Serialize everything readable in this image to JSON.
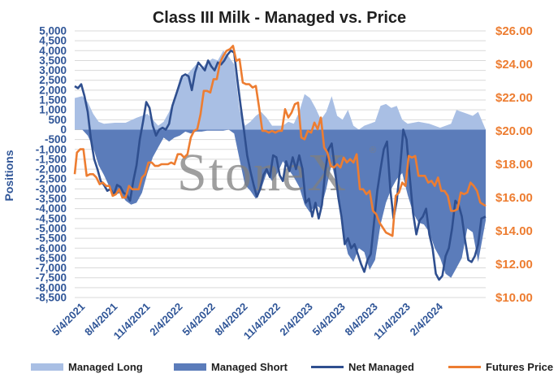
{
  "chart_data": {
    "type": "area",
    "title": "Class III Milk - Managed vs. Price",
    "ylabel": "Positions",
    "y_left_range": [
      -8500,
      5000
    ],
    "y_right_range": [
      10,
      26
    ],
    "y_left_ticks": [
      "5,000",
      "4,500",
      "4,000",
      "3,500",
      "3,000",
      "2,500",
      "2,000",
      "1,500",
      "1,000",
      "500",
      "0",
      "-500",
      "-1,000",
      "-1,500",
      "-2,000",
      "-2,500",
      "-3,000",
      "-3,500",
      "-4,000",
      "-4,500",
      "-5,000",
      "-5,500",
      "-6,000",
      "-6,500",
      "-7,000",
      "-7,500",
      "-8,000",
      "-8,500"
    ],
    "y_right_ticks": [
      "$26.00",
      "$24.00",
      "$22.00",
      "$20.00",
      "$18.00",
      "$16.00",
      "$14.00",
      "$12.00",
      "$10.00"
    ],
    "x_tick_labels": [
      "5/4/2021",
      "8/4/2021",
      "11/4/2021",
      "2/4/2022",
      "5/4/2022",
      "8/4/2022",
      "11/4/2022",
      "2/4/2023",
      "5/4/2023",
      "8/4/2023",
      "11/4/2023",
      "2/4/2024"
    ],
    "x_tick_months": [
      0,
      3,
      6,
      9,
      12,
      15,
      18,
      21,
      24,
      27,
      30,
      33
    ],
    "x_months_span": [
      -0.7,
      37.2
    ],
    "watermark": "StoneX",
    "grid": true,
    "legend_position": "bottom",
    "series": [
      {
        "name": "Managed Long",
        "color": "#a9bfe4",
        "x": [
          -0.7,
          0,
          0.5,
          1,
          1.5,
          2,
          3,
          4,
          5,
          6,
          6.5,
          7,
          7.5,
          8,
          8.5,
          9,
          9.5,
          10,
          10.5,
          11,
          11.5,
          12,
          12.5,
          13,
          13.5,
          14,
          14.5,
          15,
          15.5,
          16,
          16.5,
          17,
          17.5,
          18,
          18.5,
          19,
          19.5,
          20,
          20.5,
          21,
          21.5,
          22,
          22.5,
          23,
          23.5,
          24,
          24.5,
          25,
          25.5,
          26,
          26.5,
          27,
          27.5,
          28,
          28.5,
          29,
          29.5,
          30,
          31,
          32,
          33,
          34,
          34.5,
          35,
          35.5,
          36,
          36.5,
          37.2
        ],
        "values": [
          1600,
          1700,
          1400,
          800,
          400,
          300,
          350,
          350,
          600,
          800,
          500,
          200,
          400,
          900,
          1600,
          2600,
          2700,
          3000,
          3300,
          3100,
          3400,
          3600,
          3500,
          4000,
          3700,
          3300,
          1000,
          200,
          400,
          700,
          900,
          600,
          200,
          200,
          200,
          400,
          300,
          900,
          1800,
          1600,
          1100,
          500,
          900,
          1700,
          700,
          500,
          1000,
          200,
          0,
          200,
          300,
          400,
          1200,
          1300,
          1100,
          1200,
          500,
          300,
          400,
          300,
          100,
          300,
          1000,
          900,
          800,
          700,
          900,
          0
        ]
      },
      {
        "name": "Managed Short",
        "color": "#5b7cba",
        "x": [
          -0.7,
          0,
          0.5,
          1,
          1.5,
          2,
          2.5,
          3,
          3.5,
          4,
          4.5,
          5,
          5.5,
          6,
          6.5,
          7,
          7.5,
          8,
          8.5,
          9,
          9.5,
          10,
          10.5,
          11,
          11.5,
          12,
          12.5,
          13,
          13.5,
          14,
          14.5,
          15,
          15.5,
          16,
          16.5,
          17,
          17.5,
          18,
          18.5,
          19,
          19.5,
          20,
          20.5,
          21,
          21.5,
          22,
          22.5,
          23,
          23.5,
          24,
          24.5,
          25,
          25.5,
          26,
          26.5,
          27,
          27.5,
          28,
          28.5,
          29,
          29.5,
          30,
          30.5,
          31,
          31.5,
          32,
          32.5,
          33,
          33.5,
          34,
          34.5,
          35,
          35.5,
          36,
          36.5,
          37.2
        ],
        "values": [
          0,
          0,
          -300,
          -900,
          -1800,
          -2300,
          -2900,
          -3300,
          -3200,
          -3600,
          -3800,
          -3700,
          -3200,
          -2200,
          -1400,
          -900,
          -400,
          -600,
          -400,
          -300,
          -100,
          -200,
          -100,
          -100,
          -50,
          -50,
          -50,
          -50,
          0,
          -200,
          -1500,
          -2800,
          -3100,
          -3500,
          -3000,
          -2200,
          -2600,
          -2200,
          -1600,
          -2000,
          -2400,
          -2900,
          -3800,
          -4200,
          -3800,
          -4000,
          -3000,
          -1700,
          -3000,
          -5100,
          -6300,
          -6700,
          -6000,
          -6200,
          -7100,
          -6600,
          -4800,
          -3700,
          -3000,
          -2500,
          -2200,
          -3300,
          -4200,
          -4700,
          -4800,
          -5200,
          -6000,
          -6500,
          -7300,
          -7500,
          -7000,
          -6500,
          -5000,
          -5200,
          -6700,
          -4600
        ]
      },
      {
        "name": "Net Managed",
        "color": "#2f4f8f",
        "x": [
          -0.7,
          -0.4,
          -0.1,
          0.2,
          0.5,
          0.8,
          1.1,
          1.4,
          1.7,
          2,
          2.3,
          2.6,
          2.9,
          3.2,
          3.5,
          3.8,
          4.1,
          4.4,
          4.7,
          5,
          5.3,
          5.6,
          5.9,
          6.2,
          6.5,
          6.8,
          7.1,
          7.4,
          7.7,
          8,
          8.3,
          8.6,
          8.9,
          9.2,
          9.5,
          9.8,
          10.1,
          10.4,
          10.7,
          11,
          11.3,
          11.6,
          11.9,
          12.2,
          12.5,
          12.8,
          13.1,
          13.4,
          13.7,
          14,
          14.3,
          14.6,
          14.9,
          15.2,
          15.5,
          15.8,
          16.1,
          16.4,
          16.7,
          17,
          17.3,
          17.6,
          17.9,
          18.2,
          18.5,
          18.8,
          19.1,
          19.4,
          19.7,
          20,
          20.3,
          20.6,
          20.9,
          21.2,
          21.5,
          21.8,
          22.1,
          22.4,
          22.7,
          23,
          23.3,
          23.6,
          23.9,
          24.2,
          24.5,
          24.8,
          25.1,
          25.4,
          25.7,
          26,
          26.3,
          26.6,
          26.9,
          27.2,
          27.5,
          27.8,
          28.1,
          28.4,
          28.7,
          29,
          29.3,
          29.6,
          29.9,
          30.2,
          30.5,
          30.8,
          31.1,
          31.4,
          31.7,
          32,
          32.3,
          32.6,
          32.9,
          33.2,
          33.5,
          33.8,
          34.1,
          34.4,
          34.7,
          35,
          35.3,
          35.6,
          35.9,
          36.2,
          36.5,
          36.8,
          37.2
        ],
        "values": [
          2200,
          2100,
          2300,
          1700,
          900,
          -500,
          -1500,
          -2000,
          -2600,
          -2800,
          -3100,
          -3000,
          -3300,
          -2800,
          -2900,
          -3200,
          -3300,
          -3600,
          -2600,
          -1800,
          -500,
          400,
          1400,
          1100,
          200,
          -300,
          0,
          100,
          0,
          300,
          1200,
          1700,
          2200,
          2700,
          2800,
          2700,
          2000,
          2900,
          3400,
          3200,
          3000,
          3500,
          3200,
          3000,
          3400,
          3300,
          3500,
          3800,
          4000,
          3900,
          2500,
          1200,
          0,
          -1300,
          -2100,
          -2800,
          -3400,
          -3000,
          -2300,
          -2000,
          -2400,
          -1300,
          -1400,
          -2300,
          -2600,
          -1600,
          -2100,
          -1400,
          -2000,
          -1300,
          -2000,
          -3700,
          -3500,
          -4400,
          -3700,
          -4500,
          -3800,
          -2100,
          -1000,
          -700,
          -2000,
          -3400,
          -4400,
          -5800,
          -5500,
          -6000,
          -5800,
          -6300,
          -6800,
          -7200,
          -6600,
          -6300,
          -4700,
          -3100,
          -2000,
          -1000,
          -600,
          -3000,
          -4500,
          -3600,
          -2000,
          0,
          -500,
          -2400,
          -4200,
          -5300,
          -4600,
          -4400,
          -4000,
          -5300,
          -6000,
          -7300,
          -7600,
          -7400,
          -6400,
          -6000,
          -5000,
          -3600,
          -3800,
          -4400,
          -5600,
          -6600,
          -6700,
          -6400,
          -5800,
          -4500,
          -4400
        ]
      },
      {
        "name": "Futures Price",
        "color": "#ed7d31",
        "x": [
          -0.7,
          -0.5,
          -0.2,
          0.1,
          0.4,
          0.7,
          1,
          1.3,
          1.6,
          1.9,
          2.2,
          2.5,
          2.8,
          3.1,
          3.4,
          3.7,
          4,
          4.3,
          4.6,
          4.9,
          5.2,
          5.5,
          5.8,
          6.1,
          6.4,
          6.7,
          7,
          7.3,
          7.6,
          7.9,
          8.2,
          8.5,
          8.8,
          9.1,
          9.4,
          9.7,
          10,
          10.3,
          10.6,
          10.9,
          11.2,
          11.5,
          11.8,
          12.1,
          12.4,
          12.7,
          13,
          13.3,
          13.6,
          13.9,
          14.2,
          14.5,
          14.8,
          15.1,
          15.4,
          15.7,
          16,
          16.3,
          16.6,
          16.9,
          17.2,
          17.5,
          17.8,
          18.1,
          18.4,
          18.7,
          19,
          19.3,
          19.6,
          19.9,
          20.2,
          20.5,
          20.8,
          21.1,
          21.4,
          21.7,
          22,
          22.3,
          22.6,
          22.9,
          23.2,
          23.5,
          23.8,
          24.1,
          24.4,
          24.7,
          25,
          25.3,
          25.6,
          25.9,
          26.2,
          26.5,
          26.8,
          27.1,
          27.4,
          27.7,
          28,
          28.3,
          28.6,
          28.9,
          29.2,
          29.5,
          29.8,
          30.1,
          30.4,
          30.7,
          31,
          31.3,
          31.6,
          31.9,
          32.2,
          32.5,
          32.8,
          33.1,
          33.4,
          33.7,
          34,
          34.3,
          34.6,
          34.9,
          35.2,
          35.5,
          35.8,
          36.1,
          36.4,
          36.7,
          37.2
        ],
        "values": [
          17.4,
          18.7,
          18.9,
          18.9,
          17.3,
          17.4,
          17.4,
          17.2,
          16.8,
          16.9,
          16.7,
          16.7,
          16.1,
          16.2,
          16.5,
          16.0,
          16.0,
          16.7,
          16.5,
          16.5,
          16.5,
          17.2,
          17.4,
          18.1,
          18.1,
          17.9,
          17.9,
          18.0,
          18.0,
          18.0,
          18.1,
          18.0,
          18.6,
          18.6,
          18.4,
          18.6,
          19.6,
          20.0,
          20.1,
          21.0,
          22.4,
          22.4,
          22.3,
          23.1,
          23.1,
          24.1,
          24.5,
          24.8,
          24.9,
          25.1,
          24.2,
          24.3,
          22.9,
          22.8,
          22.8,
          22.6,
          22.7,
          21.4,
          20.0,
          20.0,
          19.9,
          20.0,
          19.9,
          20.0,
          20.0,
          21.3,
          20.8,
          21.1,
          21.6,
          21.7,
          19.6,
          19.5,
          20.0,
          19.9,
          20.5,
          20.1,
          20.8,
          19.0,
          18.7,
          17.9,
          17.8,
          18.0,
          17.8,
          18.4,
          18.1,
          18.3,
          18.1,
          18.6,
          16.5,
          16.5,
          16.2,
          16.4,
          15.2,
          15.0,
          14.5,
          14.2,
          13.9,
          13.8,
          13.7,
          16.1,
          16.3,
          16.9,
          16.7,
          18.5,
          18.4,
          18.5,
          17.3,
          17.3,
          17.3,
          16.9,
          17.0,
          16.7,
          17.2,
          16.4,
          16.4,
          16.1,
          15.2,
          15.2,
          15.3,
          16.3,
          16.2,
          16.3,
          16.9,
          16.7,
          16.4,
          15.7,
          15.5
        ]
      }
    ]
  }
}
